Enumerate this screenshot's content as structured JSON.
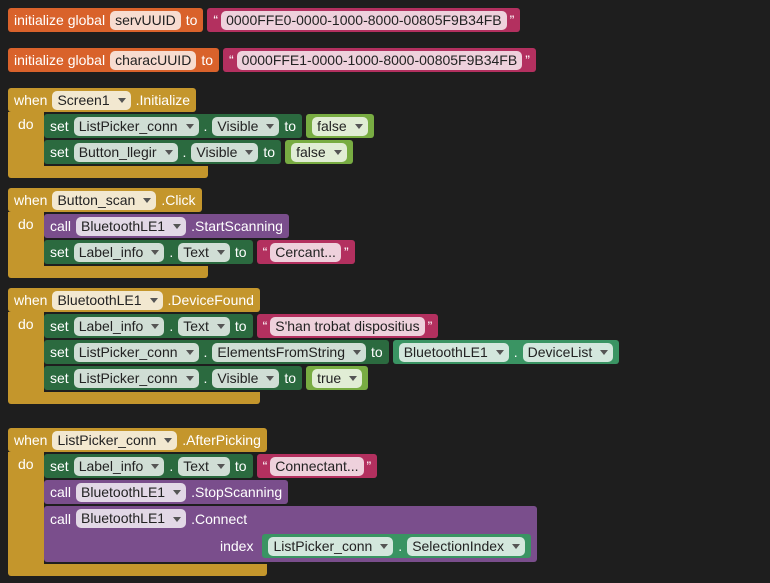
{
  "quotes": [
    "“",
    "”"
  ],
  "globals": [
    {
      "label": "initialize global",
      "name": "servUUID",
      "to": "to",
      "value": {
        "type": "text",
        "text": "0000FFE0-0000-1000-8000-00805F9B34FB"
      }
    },
    {
      "label": "initialize global",
      "name": "characUUID",
      "to": "to",
      "value": {
        "type": "text",
        "text": "0000FFE1-0000-1000-8000-00805F9B34FB"
      }
    }
  ],
  "events": [
    {
      "when": "when",
      "component": "Screen1",
      "event": ".Initialize",
      "do": "do",
      "statements": [
        {
          "keyword": "set",
          "component": "ListPicker_conn",
          "dot": ".",
          "property": "Visible",
          "to": "to",
          "value": {
            "type": "boolean",
            "text": "false"
          }
        },
        {
          "keyword": "set",
          "component": "Button_llegir",
          "dot": ".",
          "property": "Visible",
          "to": "to",
          "value": {
            "type": "boolean",
            "text": "false"
          }
        }
      ]
    },
    {
      "when": "when",
      "component": "Button_scan",
      "event": ".Click",
      "do": "do",
      "statements": [
        {
          "keyword": "call",
          "component": "BluetoothLE1",
          "method": ".StartScanning"
        },
        {
          "keyword": "set",
          "component": "Label_info",
          "dot": ".",
          "property": "Text",
          "to": "to",
          "value": {
            "type": "text",
            "text": "Cercant..."
          }
        }
      ]
    },
    {
      "when": "when",
      "component": "BluetoothLE1",
      "event": ".DeviceFound",
      "do": "do",
      "statements": [
        {
          "keyword": "set",
          "component": "Label_info",
          "dot": ".",
          "property": "Text",
          "to": "to",
          "value": {
            "type": "text",
            "text": "S'han trobat dispositius"
          }
        },
        {
          "keyword": "set",
          "component": "ListPicker_conn",
          "dot": ".",
          "property": "ElementsFromString",
          "to": "to",
          "value": {
            "type": "getter",
            "component": "BluetoothLE1",
            "dot": ".",
            "property": "DeviceList"
          }
        },
        {
          "keyword": "set",
          "component": "ListPicker_conn",
          "dot": ".",
          "property": "Visible",
          "to": "to",
          "value": {
            "type": "boolean",
            "text": "true"
          }
        }
      ]
    },
    {
      "when": "when",
      "component": "ListPicker_conn",
      "event": ".AfterPicking",
      "do": "do",
      "statements": [
        {
          "keyword": "set",
          "component": "Label_info",
          "dot": ".",
          "property": "Text",
          "to": "to",
          "value": {
            "type": "text",
            "text": "Connectant..."
          }
        },
        {
          "keyword": "call",
          "component": "BluetoothLE1",
          "method": ".StopScanning"
        },
        {
          "keyword": "call",
          "component": "BluetoothLE1",
          "method": ".Connect",
          "args": [
            {
              "name": "index",
              "value": {
                "type": "getter",
                "component": "ListPicker_conn",
                "dot": ".",
                "property": "SelectionIndex"
              }
            }
          ]
        }
      ]
    }
  ]
}
